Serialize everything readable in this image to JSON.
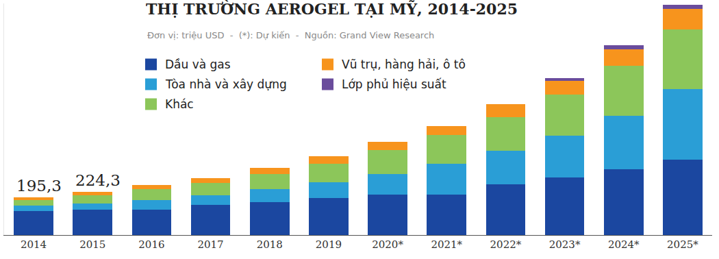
{
  "chart_data": {
    "type": "bar",
    "title": "THỊ TRƯỜNG AEROGEL TẠI MỸ, 2014-2025",
    "subtitle": "Đơn vị: triệu USD  -  (*): Dự kiến  -  Nguồn: Grand View Research",
    "stacked": true,
    "grid": false,
    "legend": "top-left",
    "tick_labels": "x",
    "categories": [
      "2014",
      "2015",
      "2016",
      "2017",
      "2018",
      "2019",
      "2020*",
      "2021*",
      "2022*",
      "2023*",
      "2024*",
      "2025*"
    ],
    "series": [
      {
        "name": "Dầu và gas",
        "color": "#1b47a0",
        "values": [
          123,
          132,
          130,
          155,
          169,
          191,
          209,
          209,
          263,
          299,
          342,
          392
        ]
      },
      {
        "name": "Tòa nhà và xây dựng",
        "color": "#2a9ed6",
        "values": [
          29,
          33,
          50,
          50,
          68,
          83,
          108,
          162,
          173,
          216,
          277,
          364
        ]
      },
      {
        "name": "Khác",
        "color": "#8cc65a",
        "values": [
          29,
          40,
          58,
          65,
          79,
          97,
          122,
          148,
          176,
          212,
          259,
          310
        ]
      },
      {
        "name": "Vũ trụ, hàng hải, ô tô",
        "color": "#f7941d",
        "values": [
          14.3,
          19.3,
          22,
          25,
          32,
          36,
          43,
          47,
          65,
          72,
          83,
          104
        ]
      },
      {
        "name": "Lớp phủ hiệu suất",
        "color": "#6a4c9c",
        "values": [
          0,
          0,
          0,
          0,
          0,
          0,
          0,
          0,
          0,
          14,
          22,
          22
        ]
      }
    ],
    "ylim": [
      0,
      1200
    ],
    "yticks": [
      0
    ],
    "annotations": [
      {
        "category": "2014",
        "value": 195.3,
        "text": "195,3"
      },
      {
        "category": "2015",
        "value": 224.3,
        "text": "224,3"
      }
    ]
  }
}
